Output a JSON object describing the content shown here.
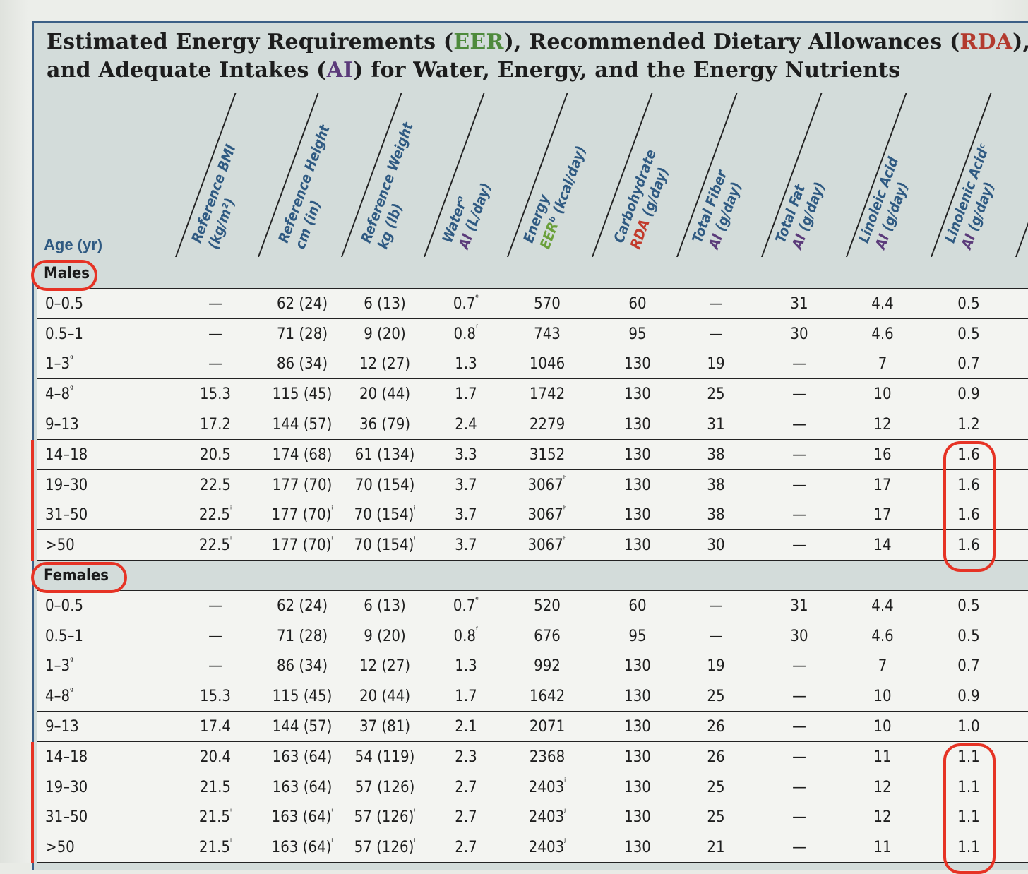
{
  "title": {
    "part1": "Estimated Energy Requirements (",
    "eer": "EER",
    "part2": "), Recommended Dietary Allowances (",
    "rda": "RDA",
    "part3": "),",
    "line2a": "and Adequate Intakes (",
    "ai": "AI",
    "line2b": ") for Water, Energy, and the Energy Nutrients"
  },
  "age_header": "Age (yr)",
  "columns": [
    {
      "line1": "Reference BMI",
      "line2": "(kg/m²)"
    },
    {
      "line1": "Reference Height",
      "line2": "cm (in)"
    },
    {
      "line1": "Reference Weight",
      "line2": "kg (lb)"
    },
    {
      "line1": "Waterᵃ",
      "line2": "AI (L/day)"
    },
    {
      "line1": "Energy",
      "line2": "EERᵇ (kcal/day)"
    },
    {
      "line1": "Carbohydrate",
      "line2": "RDA (g/day)"
    },
    {
      "line1": "Total Fiber",
      "line2": "AI (g/day)"
    },
    {
      "line1": "Total Fat",
      "line2": "AI (g/day)"
    },
    {
      "line1": "Linoleic Acid",
      "line2": "AI (g/day)"
    },
    {
      "line1": "Linolenic Acidᶜ",
      "line2": "AI (g/day)"
    }
  ],
  "sections": [
    {
      "label": "Males",
      "rows": [
        [
          "0–0.5",
          "—",
          "62 (24)",
          "6 (13)",
          "0.7ᵉ",
          "570",
          "60",
          "—",
          "31",
          "4.4",
          "0.5"
        ],
        [
          "0.5–1",
          "—",
          "71 (28)",
          "9 (20)",
          "0.8ᶠ",
          "743",
          "95",
          "—",
          "30",
          "4.6",
          "0.5"
        ],
        [
          "1–3ᵍ",
          "—",
          "86 (34)",
          "12 (27)",
          "1.3",
          "1046",
          "130",
          "19",
          "—",
          "7",
          "0.7"
        ],
        [
          "4–8ᵍ",
          "15.3",
          "115 (45)",
          "20 (44)",
          "1.7",
          "1742",
          "130",
          "25",
          "—",
          "10",
          "0.9"
        ],
        [
          "9–13",
          "17.2",
          "144 (57)",
          "36 (79)",
          "2.4",
          "2279",
          "130",
          "31",
          "—",
          "12",
          "1.2"
        ],
        [
          "14–18",
          "20.5",
          "174 (68)",
          "61 (134)",
          "3.3",
          "3152",
          "130",
          "38",
          "—",
          "16",
          "1.6"
        ],
        [
          "19–30",
          "22.5",
          "177 (70)",
          "70 (154)",
          "3.7",
          "3067ʰ",
          "130",
          "38",
          "—",
          "17",
          "1.6"
        ],
        [
          "31–50",
          "22.5ⁱ",
          "177 (70)ⁱ",
          "70 (154)ⁱ",
          "3.7",
          "3067ʰ",
          "130",
          "38",
          "—",
          "17",
          "1.6"
        ],
        [
          ">50",
          "22.5ⁱ",
          "177 (70)ⁱ",
          "70 (154)ⁱ",
          "3.7",
          "3067ʰ",
          "130",
          "30",
          "—",
          "14",
          "1.6"
        ]
      ]
    },
    {
      "label": "Females",
      "rows": [
        [
          "0–0.5",
          "—",
          "62 (24)",
          "6 (13)",
          "0.7ᵉ",
          "520",
          "60",
          "—",
          "31",
          "4.4",
          "0.5"
        ],
        [
          "0.5–1",
          "—",
          "71 (28)",
          "9 (20)",
          "0.8ᶠ",
          "676",
          "95",
          "—",
          "30",
          "4.6",
          "0.5"
        ],
        [
          "1–3ᵍ",
          "—",
          "86 (34)",
          "12 (27)",
          "1.3",
          "992",
          "130",
          "19",
          "—",
          "7",
          "0.7"
        ],
        [
          "4–8ᵍ",
          "15.3",
          "115 (45)",
          "20 (44)",
          "1.7",
          "1642",
          "130",
          "25",
          "—",
          "10",
          "0.9"
        ],
        [
          "9–13",
          "17.4",
          "144 (57)",
          "37 (81)",
          "2.1",
          "2071",
          "130",
          "26",
          "—",
          "10",
          "1.0"
        ],
        [
          "14–18",
          "20.4",
          "163 (64)",
          "54 (119)",
          "2.3",
          "2368",
          "130",
          "26",
          "—",
          "11",
          "1.1"
        ],
        [
          "19–30",
          "21.5",
          "163 (64)",
          "57 (126)",
          "2.7",
          "2403ʲ",
          "130",
          "25",
          "—",
          "12",
          "1.1"
        ],
        [
          "31–50",
          "21.5ⁱ",
          "163 (64)ⁱ",
          "57 (126)ⁱ",
          "2.7",
          "2403ʲ",
          "130",
          "25",
          "—",
          "12",
          "1.1"
        ],
        [
          ">50",
          "21.5ⁱ",
          "163 (64)ⁱ",
          "57 (126)ⁱ",
          "2.7",
          "2403ʲ",
          "130",
          "21",
          "—",
          "11",
          "1.1"
        ]
      ]
    }
  ],
  "annotation_color": "#e63325"
}
